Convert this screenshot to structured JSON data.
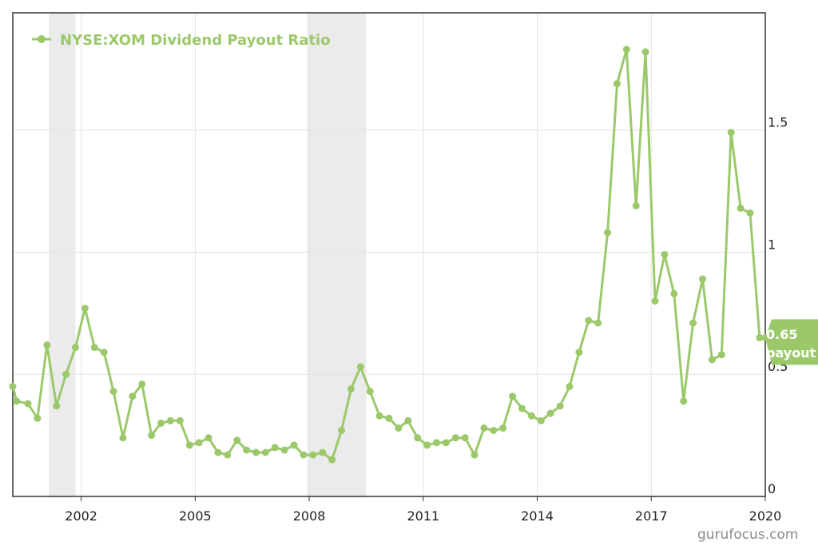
{
  "chart_data": {
    "type": "line",
    "legend": {
      "label": "NYSE:XOM Dividend Payout Ratio",
      "position": "top-left"
    },
    "grid": true,
    "xlim": [
      2000.2,
      2020.0
    ],
    "ylim": [
      0,
      1.98
    ],
    "x_ticks": [
      {
        "value": 2002,
        "label": "2002"
      },
      {
        "value": 2005,
        "label": "2005"
      },
      {
        "value": 2008,
        "label": "2008"
      },
      {
        "value": 2011,
        "label": "2011"
      },
      {
        "value": 2014,
        "label": "2014"
      },
      {
        "value": 2017,
        "label": "2017"
      },
      {
        "value": 2020,
        "label": "2020"
      }
    ],
    "y_ticks": [
      {
        "value": 0,
        "label": "0"
      },
      {
        "value": 0.5,
        "label": "0.5"
      },
      {
        "value": 1,
        "label": "1"
      },
      {
        "value": 1.5,
        "label": "1.5"
      }
    ],
    "shaded_periods": [
      {
        "from": 2001.15,
        "to": 2001.85
      },
      {
        "from": 2007.95,
        "to": 2009.5
      }
    ],
    "series": [
      {
        "name": "NYSE:XOM Dividend Payout Ratio",
        "color": "#9bc96a",
        "x": [
          2000.2,
          2000.3,
          2000.6,
          2000.85,
          2001.1,
          2001.35,
          2001.6,
          2001.85,
          2002.1,
          2002.35,
          2002.6,
          2002.85,
          2003.1,
          2003.35,
          2003.6,
          2003.85,
          2004.1,
          2004.35,
          2004.6,
          2004.85,
          2005.1,
          2005.35,
          2005.6,
          2005.85,
          2006.1,
          2006.35,
          2006.6,
          2006.85,
          2007.1,
          2007.35,
          2007.6,
          2007.85,
          2008.1,
          2008.35,
          2008.6,
          2008.85,
          2009.1,
          2009.35,
          2009.6,
          2009.85,
          2010.1,
          2010.35,
          2010.6,
          2010.85,
          2011.1,
          2011.35,
          2011.6,
          2011.85,
          2012.1,
          2012.35,
          2012.6,
          2012.85,
          2013.1,
          2013.35,
          2013.6,
          2013.85,
          2014.1,
          2014.35,
          2014.6,
          2014.85,
          2015.1,
          2015.35,
          2015.6,
          2015.85,
          2016.1,
          2016.35,
          2016.6,
          2016.85,
          2017.1,
          2017.35,
          2017.6,
          2017.85,
          2018.1,
          2018.35,
          2018.6,
          2018.85,
          2019.1,
          2019.35,
          2019.6,
          2019.85,
          2020.0
        ],
        "values": [
          0.45,
          0.39,
          0.38,
          0.32,
          0.62,
          0.37,
          0.5,
          0.61,
          0.77,
          0.61,
          0.59,
          0.43,
          0.24,
          0.41,
          0.46,
          0.25,
          0.3,
          0.31,
          0.31,
          0.21,
          0.22,
          0.24,
          0.18,
          0.17,
          0.23,
          0.19,
          0.18,
          0.18,
          0.2,
          0.19,
          0.21,
          0.17,
          0.17,
          0.18,
          0.15,
          0.27,
          0.44,
          0.53,
          0.43,
          0.33,
          0.32,
          0.28,
          0.31,
          0.24,
          0.21,
          0.22,
          0.22,
          0.24,
          0.24,
          0.17,
          0.28,
          0.27,
          0.28,
          0.41,
          0.36,
          0.33,
          0.31,
          0.34,
          0.37,
          0.45,
          0.59,
          0.72,
          0.71,
          1.08,
          1.69,
          1.83,
          1.19,
          1.82,
          0.8,
          0.99,
          0.83,
          0.39,
          0.71,
          0.89,
          0.56,
          0.58,
          1.49,
          1.18,
          1.16,
          0.65,
          0.65
        ]
      }
    ],
    "last_value_label": "0.65",
    "last_value_sublabel": "payout"
  },
  "watermark": "gurufocus.com"
}
